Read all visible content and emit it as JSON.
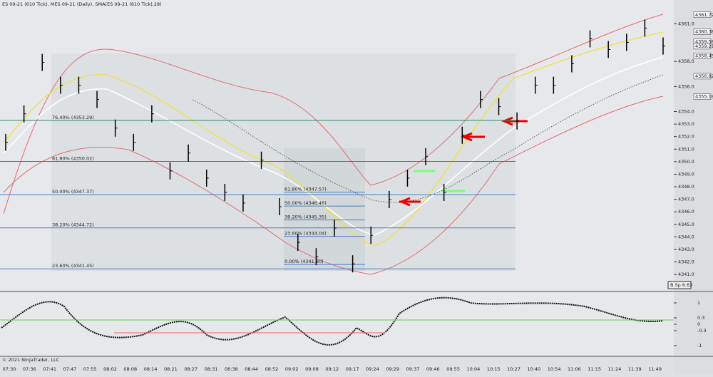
{
  "header": {
    "title": "ES 09-21 (610 Tick), MES 09-21 (Daily), SMA(ES 09-21 (610 Tick),28)",
    "copyright": "© 2021 NinjaTrader, LLC",
    "badge": "B.Sp 6.63"
  },
  "price_axis": {
    "ylim": [
      4339.7,
      4362.9
    ],
    "ticks": [
      {
        "value": 4341,
        "label": "4341.0"
      },
      {
        "value": 4342,
        "label": "4342.0"
      },
      {
        "value": 4343,
        "label": "4343.0"
      },
      {
        "value": 4344,
        "label": "4344.0"
      },
      {
        "value": 4345,
        "label": "4345.0"
      },
      {
        "value": 4346,
        "label": "4346.0"
      },
      {
        "value": 4347,
        "label": "4347.0"
      },
      {
        "value": 4348,
        "label": "4348.0"
      },
      {
        "value": 4349,
        "label": "4349.0"
      },
      {
        "value": 4350,
        "label": "4350.0"
      },
      {
        "value": 4351,
        "label": "4351.0"
      },
      {
        "value": 4352,
        "label": "4352.0"
      },
      {
        "value": 4353,
        "label": "4353.0"
      },
      {
        "value": 4354,
        "label": "4354.0"
      },
      {
        "value": 4356,
        "label": "4356.0"
      },
      {
        "value": 4358,
        "label": "4358.0"
      },
      {
        "value": 4361,
        "label": "4361.0"
      }
    ],
    "markers": [
      4361.72,
      4360.38,
      4359.58,
      4359.21,
      4358.45,
      4356.82,
      4355.19
    ]
  },
  "bars": [
    4351.54,
    4353.82,
    4357.92,
    4356.1,
    4356.1,
    4354.96,
    4352.68,
    4351.54,
    4353.82,
    4349.26,
    4350.69,
    4348.69,
    4347.55,
    4346.7,
    4350.12,
    4346.41,
    4343.56,
    4342.42,
    4344.7,
    4341.85,
    4344.13,
    4346.98,
    4348.69,
    4350.4,
    4347.55,
    4352.11,
    4354.96,
    4354.39,
    4353.25,
    4356.1,
    4356.1,
    4357.81,
    4359.8,
    4358.95,
    4359.52,
    4360.66,
    4359.23
  ],
  "fib_left": [
    {
      "label": "76.40% (4353.29)",
      "value": 4353.29
    },
    {
      "label": "61.80% (4350.02)",
      "value": 4350.02
    },
    {
      "label": "50.00% (4347.37)",
      "value": 4347.37
    },
    {
      "label": "38.20% (4344.72)",
      "value": 4344.72
    },
    {
      "label": "23.60% (4341.45)",
      "value": 4341.45
    }
  ],
  "fib_right": [
    {
      "label": "61.80% (4347.57)",
      "value": 4347.57
    },
    {
      "label": "50.00% (4346.46)",
      "value": 4346.46
    },
    {
      "label": "38.20% (4345.35)",
      "value": 4345.35
    },
    {
      "label": "23.60% (4344.04)",
      "value": 4344.04
    },
    {
      "label": "0.00% (4341.80)",
      "value": 4341.8
    }
  ],
  "indicator_axis": [
    {
      "value": 1,
      "label": "1"
    },
    {
      "value": 0.3,
      "label": "0.3"
    },
    {
      "value": 0,
      "label": "0"
    },
    {
      "value": -0.3,
      "label": "-0.3"
    },
    {
      "value": -1,
      "label": "-1"
    }
  ],
  "time_labels": [
    "07:30",
    "07:36",
    "07:41",
    "07:47",
    "07:55",
    "08:02",
    "08:08",
    "08:14",
    "08:21",
    "08:27",
    "08:31",
    "08:38",
    "08:44",
    "08:52",
    "09:02",
    "09:08",
    "09:12",
    "09:17",
    "09:24",
    "09:29",
    "09:37",
    "09:46",
    "09:55",
    "10:04",
    "10:15",
    "10:27",
    "10:40",
    "10:54",
    "11:06",
    "11:15",
    "11:24",
    "11:39",
    "11:49"
  ]
}
